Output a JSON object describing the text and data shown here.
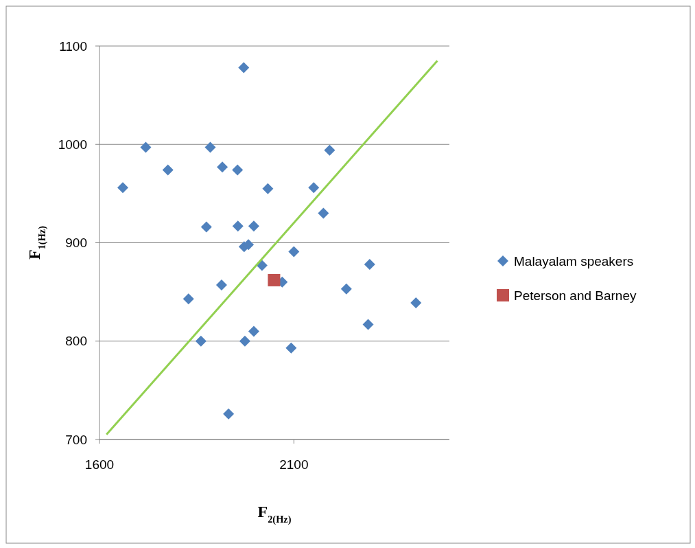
{
  "chart_data": {
    "type": "scatter",
    "xlabel": "F$_{2(Hz)}$",
    "ylabel": "F$_{1(Hz)}$",
    "xlim": [
      1600,
      2500
    ],
    "xticks": [
      1600,
      2100
    ],
    "ylim": [
      700,
      1100
    ],
    "yticks": [
      700,
      800,
      900,
      1000,
      1100
    ],
    "grid": "y",
    "legend": "right",
    "series": [
      {
        "name": "Malayalam speakers",
        "color": "#4f81bd",
        "marker": "diamond",
        "x": [
          1660,
          1719,
          1776,
          1829,
          1875,
          1885,
          1861,
          1916,
          1914,
          1932,
          1955,
          1956,
          1971,
          1972,
          1983,
          1997,
          1974,
          1997,
          2018,
          2033,
          2070,
          2093,
          2100,
          2151,
          2176,
          2192,
          2235,
          2295,
          2291,
          2414
        ],
        "values": [
          956,
          997,
          974,
          843,
          916,
          997,
          800,
          977,
          857,
          726,
          974,
          917,
          1078,
          896,
          898,
          917,
          800,
          810,
          877,
          955,
          860,
          793,
          891,
          956,
          930,
          994,
          853,
          878,
          817,
          839
        ]
      },
      {
        "name": "Peterson and Barney",
        "color": "#c0504d",
        "marker": "square",
        "x": [
          2049
        ],
        "values": [
          862
        ]
      },
      {
        "type": "line",
        "color": "#92d050",
        "marker": "none",
        "x": [
          1618,
          2469
        ],
        "values": [
          705,
          1085
        ]
      }
    ]
  }
}
